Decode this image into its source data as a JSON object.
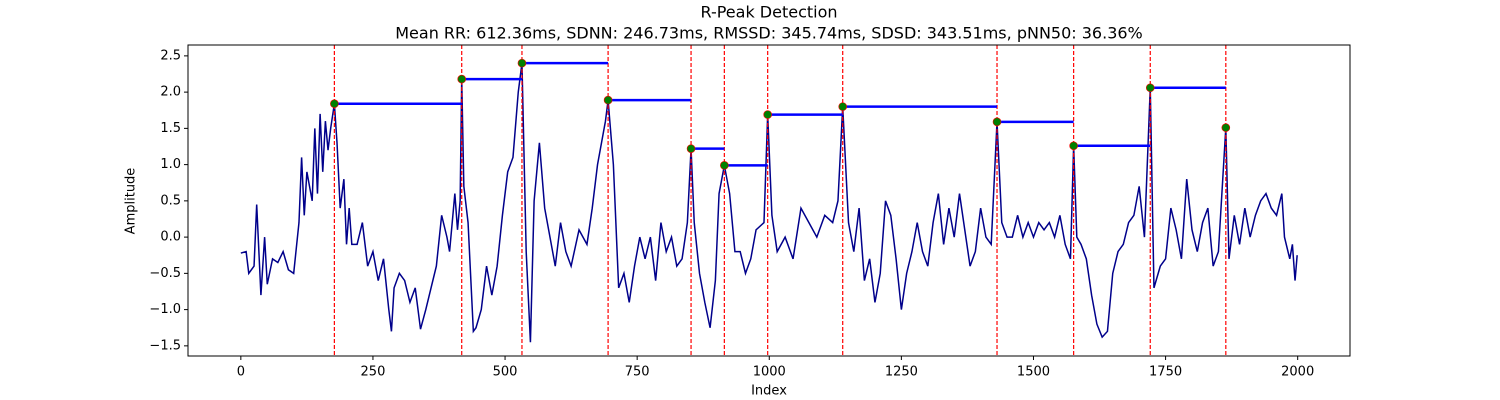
{
  "chart_data": {
    "type": "line",
    "title": "R-Peak Detection",
    "subtitle": "Mean RR: 612.36ms, SDNN: 246.73ms, RMSSD: 345.74ms, SDSD: 343.51ms, pNN50: 36.36%",
    "x_label": "Index",
    "y_label": "Amplitude",
    "xlim": [
      -100,
      2099
    ],
    "ylim": [
      -1.64,
      2.65
    ],
    "xticks": [
      0,
      250,
      500,
      750,
      1000,
      1250,
      1500,
      1750,
      2000
    ],
    "yticks": [
      {
        "value": -1.5,
        "label": "−1.5"
      },
      {
        "value": -1.0,
        "label": "−1.0"
      },
      {
        "value": -0.5,
        "label": "−0.5"
      },
      {
        "value": 0,
        "label": "0.0"
      },
      0.5,
      {
        "value": 1.0,
        "label": "1.0"
      },
      1.5,
      {
        "value": 2.0,
        "label": "2.0"
      },
      2.5
    ],
    "grid": false,
    "signal": {
      "color": "#00008b",
      "x": [
        0,
        10,
        15,
        25,
        30,
        38,
        45,
        50,
        60,
        70,
        80,
        90,
        100,
        110,
        115,
        120,
        125,
        135,
        140,
        145,
        150,
        155,
        160,
        165,
        170,
        177,
        182,
        188,
        195,
        200,
        205,
        210,
        220,
        230,
        240,
        250,
        260,
        270,
        280,
        285,
        290,
        300,
        310,
        320,
        330,
        340,
        350,
        360,
        370,
        380,
        390,
        395,
        400,
        405,
        410,
        415,
        418,
        422,
        430,
        440,
        445,
        455,
        465,
        475,
        485,
        495,
        505,
        515,
        525,
        532,
        540,
        548,
        555,
        565,
        575,
        585,
        595,
        605,
        615,
        625,
        640,
        655,
        665,
        675,
        690,
        695,
        705,
        715,
        725,
        735,
        745,
        755,
        765,
        775,
        785,
        795,
        805,
        815,
        825,
        835,
        845,
        852,
        858,
        868,
        878,
        888,
        898,
        905,
        915,
        925,
        935,
        945,
        955,
        965,
        975,
        990,
        997,
        1005,
        1015,
        1030,
        1045,
        1060,
        1075,
        1090,
        1105,
        1120,
        1130,
        1139,
        1150,
        1160,
        1170,
        1180,
        1190,
        1200,
        1210,
        1220,
        1230,
        1240,
        1250,
        1260,
        1270,
        1280,
        1290,
        1300,
        1310,
        1320,
        1330,
        1340,
        1350,
        1360,
        1370,
        1380,
        1390,
        1400,
        1410,
        1420,
        1431,
        1440,
        1450,
        1460,
        1470,
        1480,
        1490,
        1500,
        1510,
        1520,
        1530,
        1540,
        1550,
        1560,
        1570,
        1576,
        1582,
        1590,
        1600,
        1610,
        1620,
        1630,
        1640,
        1650,
        1660,
        1670,
        1680,
        1690,
        1700,
        1710,
        1721,
        1728,
        1740,
        1750,
        1760,
        1770,
        1780,
        1790,
        1800,
        1810,
        1820,
        1830,
        1840,
        1850,
        1864,
        1870,
        1880,
        1890,
        1900,
        1910,
        1920,
        1930,
        1940,
        1950,
        1960,
        1970,
        1975,
        1985,
        1990,
        1995,
        1999
      ],
      "values": [
        -0.22,
        -0.2,
        -0.5,
        -0.4,
        0.45,
        -0.8,
        0.0,
        -0.65,
        -0.3,
        -0.35,
        -0.2,
        -0.45,
        -0.5,
        0.2,
        1.1,
        0.3,
        0.9,
        0.5,
        1.5,
        0.6,
        1.7,
        0.9,
        1.6,
        1.2,
        1.5,
        1.84,
        1.3,
        0.4,
        0.8,
        -0.1,
        0.4,
        -0.1,
        -0.1,
        0.2,
        -0.4,
        -0.2,
        -0.6,
        -0.3,
        -1.0,
        -1.3,
        -0.7,
        -0.5,
        -0.6,
        -0.9,
        -0.7,
        -1.27,
        -1.0,
        -0.7,
        -0.4,
        0.3,
        0.0,
        -0.2,
        0.2,
        0.6,
        0.1,
        0.5,
        2.18,
        0.7,
        0.2,
        -1.3,
        -1.25,
        -1.0,
        -0.4,
        -0.8,
        -0.4,
        0.3,
        0.9,
        1.1,
        2.0,
        2.4,
        -0.2,
        -1.45,
        0.5,
        1.3,
        0.4,
        0.0,
        -0.4,
        0.2,
        -0.2,
        -0.4,
        0.1,
        -0.1,
        0.4,
        1.0,
        1.6,
        1.89,
        1.0,
        -0.7,
        -0.5,
        -0.9,
        -0.4,
        0.0,
        -0.3,
        0.0,
        -0.6,
        0.2,
        -0.2,
        0.0,
        -0.4,
        -0.3,
        0.2,
        1.22,
        0.2,
        -0.5,
        -0.9,
        -1.25,
        -0.6,
        0.6,
        0.99,
        0.6,
        -0.2,
        -0.2,
        -0.5,
        -0.3,
        0.1,
        0.2,
        1.69,
        0.3,
        -0.2,
        0.0,
        -0.3,
        0.4,
        0.2,
        0.0,
        0.3,
        0.2,
        0.5,
        1.8,
        0.2,
        -0.2,
        0.4,
        -0.6,
        -0.3,
        -0.9,
        -0.5,
        0.5,
        0.3,
        -0.3,
        -1.0,
        -0.5,
        -0.2,
        0.2,
        -0.2,
        -0.4,
        0.2,
        0.6,
        -0.1,
        0.4,
        0.0,
        0.6,
        0.1,
        -0.4,
        -0.2,
        0.4,
        0.0,
        -0.1,
        1.59,
        0.2,
        0.0,
        0.0,
        0.3,
        0.0,
        0.2,
        0.0,
        0.2,
        0.1,
        0.2,
        0.0,
        0.3,
        -0.1,
        -0.3,
        1.26,
        0.0,
        -0.1,
        -0.3,
        -0.8,
        -1.2,
        -1.38,
        -1.3,
        -0.5,
        -0.2,
        -0.1,
        0.2,
        0.3,
        0.7,
        0.0,
        2.06,
        -0.7,
        -0.4,
        -0.3,
        0.4,
        0.1,
        -0.3,
        0.8,
        0.1,
        -0.2,
        0.2,
        0.4,
        -0.4,
        -0.2,
        1.51,
        -0.3,
        0.3,
        -0.1,
        0.4,
        0.0,
        0.3,
        0.5,
        0.6,
        0.4,
        0.3,
        0.6,
        0.0,
        -0.3,
        -0.1,
        -0.6,
        -0.25
      ]
    },
    "peaks": {
      "color": "#008000",
      "edge_color": "#ff0000",
      "vline_color": "#ff0000",
      "rr_color": "#0000ff",
      "x": [
        177,
        418,
        532,
        695,
        852,
        915,
        997,
        1139,
        1431,
        1576,
        1721,
        1864
      ],
      "values": [
        1.84,
        2.18,
        2.4,
        1.89,
        1.22,
        0.99,
        1.69,
        1.8,
        1.59,
        1.26,
        2.06,
        1.51
      ]
    }
  }
}
